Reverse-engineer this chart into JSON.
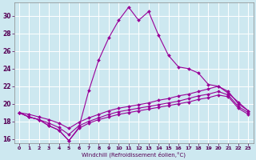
{
  "xlabel": "Windchill (Refroidissement éolien,°C)",
  "background_color": "#cde8f0",
  "grid_color": "#ffffff",
  "line_color": "#990099",
  "xlim": [
    -0.5,
    23.5
  ],
  "ylim": [
    15.5,
    31.5
  ],
  "yticks": [
    16,
    18,
    20,
    22,
    24,
    26,
    28,
    30
  ],
  "xticks": [
    0,
    1,
    2,
    3,
    4,
    5,
    6,
    7,
    8,
    9,
    10,
    11,
    12,
    13,
    14,
    15,
    16,
    17,
    18,
    19,
    20,
    21,
    22,
    23
  ],
  "line1_x": [
    0,
    1,
    2,
    3,
    4,
    5,
    6,
    7,
    8,
    9,
    10,
    11,
    12,
    13,
    14,
    15,
    16,
    17,
    18,
    19,
    20,
    21,
    22,
    23
  ],
  "line1_y": [
    19.0,
    18.5,
    18.2,
    17.5,
    17.0,
    15.8,
    17.3,
    21.5,
    25.0,
    27.5,
    29.5,
    31.0,
    29.5,
    30.5,
    27.8,
    25.5,
    24.2,
    24.0,
    23.5,
    22.2,
    22.0,
    21.2,
    20.2,
    19.2
  ],
  "line2_x": [
    0,
    1,
    2,
    3,
    4,
    5,
    6,
    7,
    8,
    9,
    10,
    11,
    12,
    13,
    14,
    15,
    16,
    17,
    18,
    19,
    20,
    21,
    22,
    23
  ],
  "line2_y": [
    19.0,
    18.5,
    18.2,
    17.5,
    17.0,
    15.8,
    17.2,
    17.8,
    18.2,
    18.5,
    18.8,
    19.0,
    19.2,
    19.4,
    19.6,
    19.8,
    20.0,
    20.2,
    20.5,
    20.7,
    21.0,
    20.8,
    19.5,
    18.8
  ],
  "line3_x": [
    0,
    1,
    2,
    3,
    4,
    5,
    6,
    7,
    8,
    9,
    10,
    11,
    12,
    13,
    14,
    15,
    16,
    17,
    18,
    19,
    20,
    21,
    22,
    23
  ],
  "line3_y": [
    19.0,
    18.5,
    18.2,
    17.8,
    17.3,
    16.5,
    17.5,
    18.0,
    18.4,
    18.8,
    19.1,
    19.3,
    19.5,
    19.7,
    19.9,
    20.1,
    20.3,
    20.6,
    20.9,
    21.1,
    21.4,
    21.0,
    19.7,
    19.0
  ],
  "line4_x": [
    0,
    1,
    2,
    3,
    4,
    5,
    6,
    7,
    8,
    9,
    10,
    11,
    12,
    13,
    14,
    15,
    16,
    17,
    18,
    19,
    20,
    21,
    22,
    23
  ],
  "line4_y": [
    19.0,
    18.8,
    18.5,
    18.2,
    17.8,
    17.2,
    17.9,
    18.4,
    18.8,
    19.2,
    19.5,
    19.7,
    19.9,
    20.1,
    20.4,
    20.6,
    20.9,
    21.1,
    21.4,
    21.7,
    22.0,
    21.4,
    20.0,
    19.2
  ]
}
